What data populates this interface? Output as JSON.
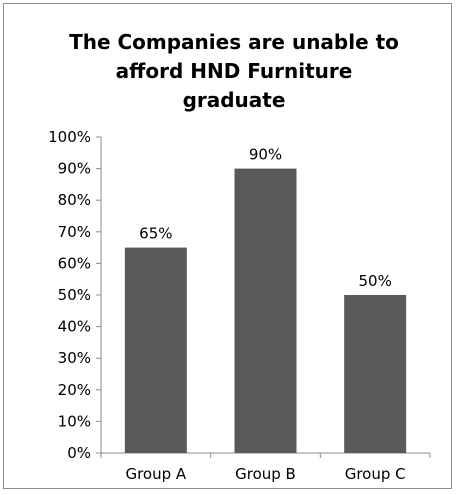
{
  "chart_data": {
    "type": "bar",
    "title_lines": [
      "The Companies are unable to",
      "afford HND Furniture",
      "graduate"
    ],
    "categories": [
      "Group A",
      "Group B",
      "Group C"
    ],
    "values": [
      65,
      90,
      50
    ],
    "data_labels": [
      "65%",
      "90%",
      "50%"
    ],
    "ylim": [
      0,
      100
    ],
    "y_ticks": [
      "0%",
      "10%",
      "20%",
      "30%",
      "40%",
      "50%",
      "60%",
      "70%",
      "80%",
      "90%",
      "100%"
    ],
    "bar_color": "#595959",
    "grid": false,
    "legend": "none"
  }
}
